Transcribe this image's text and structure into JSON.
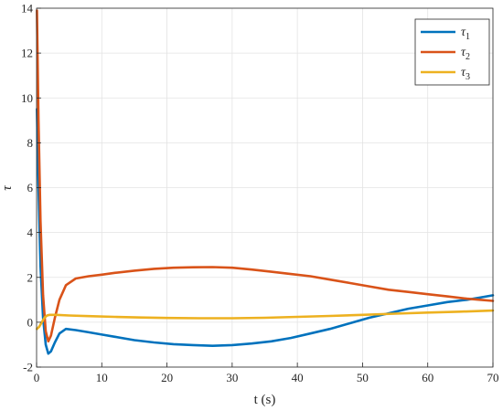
{
  "chart_data": {
    "type": "line",
    "xlabel": "t (s)",
    "ylabel": "τ",
    "xlim": [
      0,
      70
    ],
    "ylim": [
      -2,
      14
    ],
    "xticks": [
      0,
      10,
      20,
      30,
      40,
      50,
      60,
      70
    ],
    "yticks": [
      -2,
      0,
      2,
      4,
      6,
      8,
      10,
      12,
      14
    ],
    "grid": true,
    "legend_position": "top-right",
    "series": [
      {
        "name": "τ1",
        "name_base": "τ",
        "name_sub": "1",
        "color": "#0072BD",
        "x": [
          0.05,
          0.3,
          0.6,
          1.0,
          1.4,
          1.8,
          2.2,
          2.8,
          3.5,
          4.5,
          6,
          8,
          10,
          12,
          15,
          18,
          21,
          24,
          27,
          30,
          33,
          36,
          39,
          42,
          45,
          48,
          51,
          54,
          57,
          60,
          63,
          66,
          68,
          70
        ],
        "y": [
          9.5,
          6.0,
          2.5,
          0.2,
          -1.0,
          -1.4,
          -1.3,
          -0.9,
          -0.5,
          -0.3,
          -0.35,
          -0.45,
          -0.55,
          -0.65,
          -0.8,
          -0.9,
          -0.98,
          -1.02,
          -1.05,
          -1.02,
          -0.95,
          -0.85,
          -0.7,
          -0.5,
          -0.3,
          -0.05,
          0.2,
          0.4,
          0.6,
          0.75,
          0.9,
          1.0,
          1.1,
          1.2
        ]
      },
      {
        "name": "τ2",
        "name_base": "τ",
        "name_sub": "2",
        "color": "#D95319",
        "x": [
          0.05,
          0.3,
          0.6,
          1.0,
          1.4,
          1.8,
          2.2,
          2.8,
          3.5,
          4.5,
          6,
          8,
          10,
          12,
          15,
          18,
          21,
          24,
          27,
          30,
          33,
          36,
          39,
          42,
          45,
          48,
          51,
          54,
          57,
          60,
          63,
          66,
          68,
          70
        ],
        "y": [
          13.9,
          9.0,
          4.5,
          1.2,
          -0.4,
          -0.85,
          -0.6,
          0.2,
          1.0,
          1.65,
          1.95,
          2.05,
          2.12,
          2.2,
          2.3,
          2.38,
          2.43,
          2.45,
          2.46,
          2.43,
          2.35,
          2.25,
          2.15,
          2.05,
          1.9,
          1.75,
          1.6,
          1.45,
          1.35,
          1.25,
          1.15,
          1.05,
          1.0,
          0.95
        ]
      },
      {
        "name": "τ3",
        "name_base": "τ",
        "name_sub": "3",
        "color": "#EDB120",
        "x": [
          0.05,
          0.4,
          0.8,
          1.2,
          1.6,
          2.0,
          3.0,
          5,
          8,
          12,
          16,
          20,
          25,
          30,
          35,
          40,
          45,
          50,
          55,
          60,
          65,
          70
        ],
        "y": [
          -0.3,
          -0.2,
          0.0,
          0.2,
          0.3,
          0.33,
          0.33,
          0.3,
          0.27,
          0.24,
          0.21,
          0.19,
          0.18,
          0.18,
          0.2,
          0.24,
          0.28,
          0.33,
          0.38,
          0.43,
          0.47,
          0.52
        ]
      }
    ]
  }
}
